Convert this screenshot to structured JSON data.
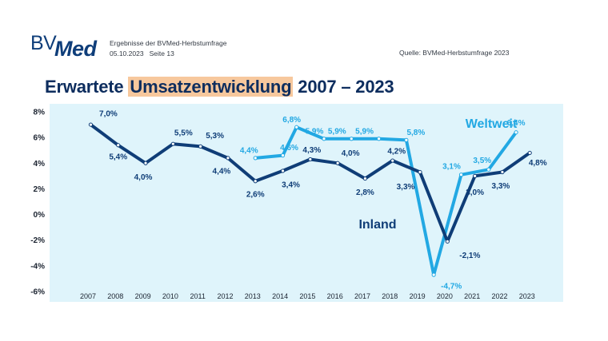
{
  "header": {
    "logo_bv": "BV",
    "logo_med": "Med",
    "subtitle": "Ergebnisse der BVMed-Herbstumfrage",
    "date": "05.10.2023",
    "page": "Seite 13",
    "source": "Quelle: BVMed-Herbstumfrage 2023"
  },
  "title_parts": {
    "before": "Erwartete ",
    "highlight": "Umsatzentwicklung",
    "after": " 2007 – 2023"
  },
  "colors": {
    "inland": "#0f3d77",
    "weltweit": "#22a8e3",
    "panel": "#dff4fb",
    "highlight": "#f7c89d",
    "title": "#0d2d5e"
  },
  "chart_data": {
    "type": "line",
    "title": "Erwartete Umsatzentwicklung 2007 – 2023",
    "xlabel": "",
    "ylabel": "",
    "ylim": [
      -6,
      8
    ],
    "y_ticks": [
      "8%",
      "6%",
      "4%",
      "2%",
      "0%",
      "-2%",
      "-4%",
      "-6%"
    ],
    "categories": [
      "2007",
      "2008",
      "2009",
      "2010",
      "2011",
      "2012",
      "2013",
      "2014",
      "2015",
      "2016",
      "2017",
      "2018",
      "2019",
      "2020",
      "2021",
      "2022",
      "2023"
    ],
    "series": [
      {
        "name": "Inland",
        "points": [
          {
            "x": 2007.1,
            "y": 7.0,
            "label": "7,0%"
          },
          {
            "x": 2008.1,
            "y": 5.4,
            "label": "5,4%"
          },
          {
            "x": 2009.1,
            "y": 4.0,
            "label": "4,0%"
          },
          {
            "x": 2010.1,
            "y": 5.5,
            "label": "5,5%"
          },
          {
            "x": 2011.1,
            "y": 5.3,
            "label": "5,3%"
          },
          {
            "x": 2012.1,
            "y": 4.4,
            "label": "4,4%"
          },
          {
            "x": 2013.1,
            "y": 2.6,
            "label": "2,6%"
          },
          {
            "x": 2014.1,
            "y": 3.4,
            "label": "3,4%"
          },
          {
            "x": 2015.1,
            "y": 4.3,
            "label": "4,3%"
          },
          {
            "x": 2016.1,
            "y": 4.0,
            "label": "4,0%"
          },
          {
            "x": 2017.1,
            "y": 2.8,
            "label": "2,8%"
          },
          {
            "x": 2018.1,
            "y": 4.2,
            "label": "4,2%"
          },
          {
            "x": 2019.1,
            "y": 3.3,
            "label": "3,3%"
          },
          {
            "x": 2020.1,
            "y": -2.1,
            "label": "-2,1%"
          },
          {
            "x": 2021.1,
            "y": 3.0,
            "label": "3,0%"
          },
          {
            "x": 2022.1,
            "y": 3.3,
            "label": "3,3%"
          },
          {
            "x": 2023.1,
            "y": 4.8,
            "label": "4,8%"
          }
        ]
      },
      {
        "name": "Weltweit",
        "points": [
          {
            "x": 2013.1,
            "y": 4.4,
            "label": "4,4%"
          },
          {
            "x": 2014.1,
            "y": 4.6,
            "label": "4,6%"
          },
          {
            "x": 2014.6,
            "y": 6.8,
            "label": "6,8%"
          },
          {
            "x": 2015.6,
            "y": 5.9,
            "label": "5,9%"
          },
          {
            "x": 2016.6,
            "y": 5.9,
            "label": "5,9%"
          },
          {
            "x": 2017.6,
            "y": 5.9,
            "label": "5,9%"
          },
          {
            "x": 2018.6,
            "y": 5.8,
            "label": "5,8%"
          },
          {
            "x": 2019.6,
            "y": -4.7,
            "label": "-4,7%"
          },
          {
            "x": 2020.6,
            "y": 3.1,
            "label": "3,1%"
          },
          {
            "x": 2021.6,
            "y": 3.5,
            "label": "3,5%"
          },
          {
            "x": 2022.6,
            "y": 6.4,
            "label": "6,4%"
          }
        ]
      }
    ],
    "series_labels": [
      "Weltweit",
      "Inland"
    ]
  }
}
